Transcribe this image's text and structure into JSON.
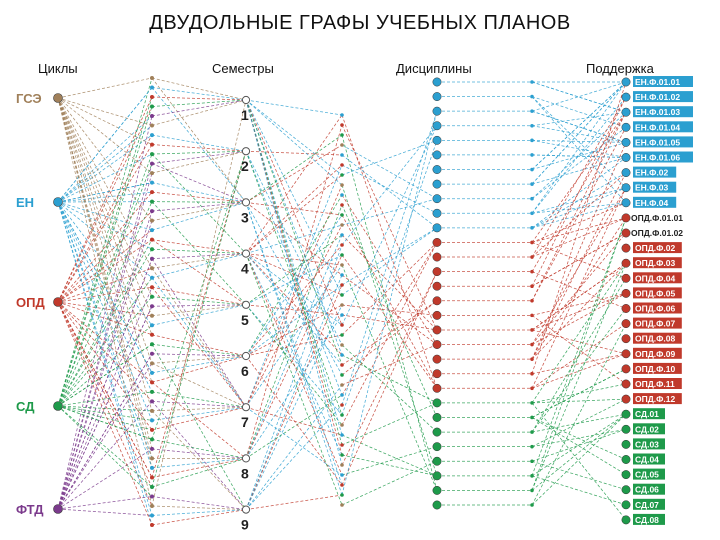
{
  "title": "ДВУДОЛЬНЫЕ ГРАФЫ УЧЕБНЫХ ПЛАНОВ",
  "headers": {
    "cycles": "Циклы",
    "semesters": "Семестры",
    "disciplines": "Дисциплины",
    "support": "Поддержка"
  },
  "colors": {
    "gse": "#a0805a",
    "en": "#2b9fd0",
    "opd": "#c0392b",
    "sd": "#1e9a4a",
    "ftd": "#7b3a8c",
    "semester_node": "#ffffff"
  },
  "cycles": [
    {
      "label": "ГСЭ",
      "key": "gse"
    },
    {
      "label": "ЕН",
      "key": "en"
    },
    {
      "label": "ОПД",
      "key": "opd"
    },
    {
      "label": "СД",
      "key": "sd"
    },
    {
      "label": "ФТД",
      "key": "ftd"
    }
  ],
  "semesters": [
    "1",
    "2",
    "3",
    "4",
    "5",
    "6",
    "7",
    "8",
    "9"
  ],
  "support": [
    {
      "label": "ЕН.Ф.01.01",
      "key": "en",
      "boxed": true
    },
    {
      "label": "ЕН.Ф.01.02",
      "key": "en",
      "boxed": true
    },
    {
      "label": "ЕН.Ф.01.03",
      "key": "en",
      "boxed": true
    },
    {
      "label": "ЕН.Ф.01.04",
      "key": "en",
      "boxed": true
    },
    {
      "label": "ЕН.Ф.01.05",
      "key": "en",
      "boxed": true
    },
    {
      "label": "ЕН.Ф.01.06",
      "key": "en",
      "boxed": true
    },
    {
      "label": "ЕН.Ф.02",
      "key": "en",
      "boxed": true
    },
    {
      "label": "ЕН.Ф.03",
      "key": "en",
      "boxed": true
    },
    {
      "label": "ЕН.Ф.04",
      "key": "en",
      "boxed": true
    },
    {
      "label": "ОПД.Ф.01.01",
      "key": "opd",
      "boxed": false
    },
    {
      "label": "ОПД.Ф.01.02",
      "key": "opd",
      "boxed": false
    },
    {
      "label": "ОПД.Ф.02",
      "key": "opd",
      "boxed": true
    },
    {
      "label": "ОПД.Ф.03",
      "key": "opd",
      "boxed": true
    },
    {
      "label": "ОПД.Ф.04",
      "key": "opd",
      "boxed": true
    },
    {
      "label": "ОПД.Ф.05",
      "key": "opd",
      "boxed": true
    },
    {
      "label": "ОПД.Ф.06",
      "key": "opd",
      "boxed": true
    },
    {
      "label": "ОПД.Ф.07",
      "key": "opd",
      "boxed": true
    },
    {
      "label": "ОПД.Ф.08",
      "key": "opd",
      "boxed": true
    },
    {
      "label": "ОПД.Ф.09",
      "key": "opd",
      "boxed": true
    },
    {
      "label": "ОПД.Ф.10",
      "key": "opd",
      "boxed": true
    },
    {
      "label": "ОПД.Ф.11",
      "key": "opd",
      "boxed": true
    },
    {
      "label": "ОПД.Ф.12",
      "key": "opd",
      "boxed": true
    },
    {
      "label": "СД.01",
      "key": "sd",
      "boxed": true
    },
    {
      "label": "СД.02",
      "key": "sd",
      "boxed": true
    },
    {
      "label": "СД.03",
      "key": "sd",
      "boxed": true
    },
    {
      "label": "СД.04",
      "key": "sd",
      "boxed": true
    },
    {
      "label": "СД.05",
      "key": "sd",
      "boxed": true
    },
    {
      "label": "СД.06",
      "key": "sd",
      "boxed": true
    },
    {
      "label": "СД.07",
      "key": "sd",
      "boxed": true
    },
    {
      "label": "СД.08",
      "key": "sd",
      "boxed": true
    }
  ]
}
